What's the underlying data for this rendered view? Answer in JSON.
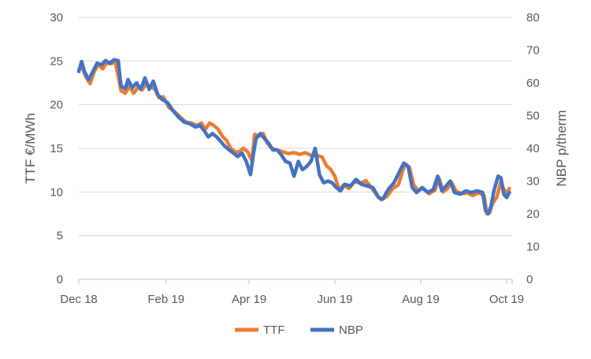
{
  "chart_data": {
    "type": "line",
    "y_left": {
      "label": "TTF €/MWh",
      "min": 0,
      "max": 30,
      "ticks": [
        0,
        5,
        10,
        15,
        20,
        25,
        30
      ]
    },
    "y_right": {
      "label": "NBP p/therm",
      "min": 0,
      "max": 80,
      "ticks": [
        0,
        10,
        20,
        30,
        40,
        50,
        60,
        70,
        80
      ]
    },
    "x_axis": {
      "start": "2018-12-01",
      "end": "2019-10-05",
      "ticks": [
        {
          "date": "2018-12-01",
          "label": "Dec 18"
        },
        {
          "date": "2019-02-01",
          "label": "Feb 19"
        },
        {
          "date": "2019-04-01",
          "label": "Apr 19"
        },
        {
          "date": "2019-06-01",
          "label": "Jun 19"
        },
        {
          "date": "2019-08-01",
          "label": "Aug 19"
        },
        {
          "date": "2019-10-01",
          "label": "Oct 19"
        }
      ]
    },
    "grid": true,
    "legend": {
      "position": "bottom"
    },
    "series": [
      {
        "name": "TTF",
        "axis": "left",
        "color": "#ED7D31",
        "points": [
          [
            "2018-12-01",
            24.0
          ],
          [
            "2018-12-03",
            24.4
          ],
          [
            "2018-12-06",
            23.2
          ],
          [
            "2018-12-09",
            22.4
          ],
          [
            "2018-12-12",
            23.8
          ],
          [
            "2018-12-15",
            24.6
          ],
          [
            "2018-12-18",
            24.1
          ],
          [
            "2018-12-21",
            24.8
          ],
          [
            "2018-12-24",
            24.7
          ],
          [
            "2018-12-27",
            24.9
          ],
          [
            "2018-12-31",
            21.6
          ],
          [
            "2019-01-03",
            21.3
          ],
          [
            "2019-01-06",
            22.1
          ],
          [
            "2019-01-09",
            21.3
          ],
          [
            "2019-01-12",
            22.0
          ],
          [
            "2019-01-15",
            21.7
          ],
          [
            "2019-01-18",
            22.4
          ],
          [
            "2019-01-21",
            22.0
          ],
          [
            "2019-01-24",
            21.8
          ],
          [
            "2019-01-27",
            20.8
          ],
          [
            "2019-01-30",
            20.9
          ],
          [
            "2019-02-03",
            19.7
          ],
          [
            "2019-02-07",
            19.2
          ],
          [
            "2019-02-11",
            18.6
          ],
          [
            "2019-02-15",
            18.0
          ],
          [
            "2019-02-19",
            17.9
          ],
          [
            "2019-02-23",
            17.6
          ],
          [
            "2019-02-26",
            17.9
          ],
          [
            "2019-03-01",
            17.2
          ],
          [
            "2019-03-04",
            17.9
          ],
          [
            "2019-03-07",
            17.6
          ],
          [
            "2019-03-10",
            17.2
          ],
          [
            "2019-03-13",
            16.4
          ],
          [
            "2019-03-16",
            15.9
          ],
          [
            "2019-03-19",
            15.0
          ],
          [
            "2019-03-22",
            14.6
          ],
          [
            "2019-03-25",
            14.6
          ],
          [
            "2019-03-28",
            15.0
          ],
          [
            "2019-03-31",
            14.6
          ],
          [
            "2019-04-03",
            13.6
          ],
          [
            "2019-04-05",
            16.6
          ],
          [
            "2019-04-08",
            16.4
          ],
          [
            "2019-04-11",
            16.7
          ],
          [
            "2019-04-14",
            15.6
          ],
          [
            "2019-04-17",
            15.0
          ],
          [
            "2019-04-21",
            14.8
          ],
          [
            "2019-04-25",
            14.6
          ],
          [
            "2019-04-29",
            14.4
          ],
          [
            "2019-05-03",
            14.5
          ],
          [
            "2019-05-07",
            14.3
          ],
          [
            "2019-05-11",
            14.5
          ],
          [
            "2019-05-15",
            14.2
          ],
          [
            "2019-05-19",
            14.2
          ],
          [
            "2019-05-23",
            14.0
          ],
          [
            "2019-05-26",
            13.0
          ],
          [
            "2019-05-29",
            12.6
          ],
          [
            "2019-06-01",
            11.8
          ],
          [
            "2019-06-04",
            10.2
          ],
          [
            "2019-06-07",
            10.8
          ],
          [
            "2019-06-11",
            10.4
          ],
          [
            "2019-06-15",
            11.2
          ],
          [
            "2019-06-19",
            11.0
          ],
          [
            "2019-06-23",
            11.3
          ],
          [
            "2019-06-27",
            10.5
          ],
          [
            "2019-07-01",
            9.6
          ],
          [
            "2019-07-04",
            9.1
          ],
          [
            "2019-07-08",
            9.5
          ],
          [
            "2019-07-12",
            10.4
          ],
          [
            "2019-07-16",
            10.8
          ],
          [
            "2019-07-19",
            12.3
          ],
          [
            "2019-07-21",
            13.2
          ],
          [
            "2019-07-24",
            12.8
          ],
          [
            "2019-07-27",
            10.8
          ],
          [
            "2019-07-30",
            10.2
          ],
          [
            "2019-08-03",
            10.4
          ],
          [
            "2019-08-07",
            9.8
          ],
          [
            "2019-08-11",
            10.2
          ],
          [
            "2019-08-14",
            11.6
          ],
          [
            "2019-08-17",
            10.0
          ],
          [
            "2019-08-20",
            10.4
          ],
          [
            "2019-08-23",
            11.1
          ],
          [
            "2019-08-26",
            10.1
          ],
          [
            "2019-08-30",
            9.8
          ],
          [
            "2019-09-03",
            9.9
          ],
          [
            "2019-09-07",
            9.6
          ],
          [
            "2019-09-11",
            9.9
          ],
          [
            "2019-09-15",
            9.6
          ],
          [
            "2019-09-17",
            7.5
          ],
          [
            "2019-09-19",
            7.6
          ],
          [
            "2019-09-21",
            8.7
          ],
          [
            "2019-09-24",
            9.4
          ],
          [
            "2019-09-27",
            11.2
          ],
          [
            "2019-09-29",
            10.3
          ],
          [
            "2019-10-01",
            9.9
          ],
          [
            "2019-10-03",
            10.4
          ]
        ]
      },
      {
        "name": "NBP",
        "axis": "right",
        "color": "#4472C4",
        "points": [
          [
            "2018-12-01",
            63.5
          ],
          [
            "2018-12-03",
            66.5
          ],
          [
            "2018-12-05",
            63.5
          ],
          [
            "2018-12-08",
            61.0
          ],
          [
            "2018-12-11",
            63.5
          ],
          [
            "2018-12-14",
            66.0
          ],
          [
            "2018-12-17",
            65.5
          ],
          [
            "2018-12-20",
            66.8
          ],
          [
            "2018-12-23",
            66.0
          ],
          [
            "2018-12-26",
            67.0
          ],
          [
            "2018-12-29",
            66.8
          ],
          [
            "2018-12-31",
            59.0
          ],
          [
            "2019-01-03",
            58.2
          ],
          [
            "2019-01-05",
            61.0
          ],
          [
            "2019-01-08",
            58.5
          ],
          [
            "2019-01-11",
            60.0
          ],
          [
            "2019-01-14",
            58.0
          ],
          [
            "2019-01-17",
            61.5
          ],
          [
            "2019-01-20",
            58.0
          ],
          [
            "2019-01-23",
            60.5
          ],
          [
            "2019-01-26",
            56.5
          ],
          [
            "2019-01-29",
            55.0
          ],
          [
            "2019-02-02",
            54.0
          ],
          [
            "2019-02-06",
            51.5
          ],
          [
            "2019-02-10",
            49.5
          ],
          [
            "2019-02-14",
            48.0
          ],
          [
            "2019-02-18",
            47.5
          ],
          [
            "2019-02-22",
            46.5
          ],
          [
            "2019-02-25",
            47.0
          ],
          [
            "2019-02-28",
            45.5
          ],
          [
            "2019-03-03",
            43.5
          ],
          [
            "2019-03-06",
            44.5
          ],
          [
            "2019-03-09",
            43.5
          ],
          [
            "2019-03-12",
            42.0
          ],
          [
            "2019-03-15",
            40.5
          ],
          [
            "2019-03-18",
            39.5
          ],
          [
            "2019-03-21",
            38.5
          ],
          [
            "2019-03-24",
            37.5
          ],
          [
            "2019-03-27",
            38.5
          ],
          [
            "2019-03-30",
            36.0
          ],
          [
            "2019-04-02",
            32.0
          ],
          [
            "2019-04-04",
            38.0
          ],
          [
            "2019-04-06",
            43.0
          ],
          [
            "2019-04-09",
            44.5
          ],
          [
            "2019-04-12",
            43.0
          ],
          [
            "2019-04-15",
            41.5
          ],
          [
            "2019-04-18",
            39.5
          ],
          [
            "2019-04-21",
            39.5
          ],
          [
            "2019-04-24",
            38.0
          ],
          [
            "2019-04-27",
            36.0
          ],
          [
            "2019-04-30",
            35.5
          ],
          [
            "2019-05-03",
            31.5
          ],
          [
            "2019-05-06",
            36.0
          ],
          [
            "2019-05-09",
            33.5
          ],
          [
            "2019-05-12",
            34.5
          ],
          [
            "2019-05-15",
            36.0
          ],
          [
            "2019-05-18",
            40.0
          ],
          [
            "2019-05-21",
            32.0
          ],
          [
            "2019-05-24",
            29.5
          ],
          [
            "2019-05-27",
            30.0
          ],
          [
            "2019-05-30",
            29.5
          ],
          [
            "2019-06-02",
            28.0
          ],
          [
            "2019-06-05",
            27.0
          ],
          [
            "2019-06-08",
            29.0
          ],
          [
            "2019-06-12",
            28.5
          ],
          [
            "2019-06-16",
            30.5
          ],
          [
            "2019-06-20",
            29.0
          ],
          [
            "2019-06-24",
            28.5
          ],
          [
            "2019-06-28",
            28.0
          ],
          [
            "2019-07-02",
            25.0
          ],
          [
            "2019-07-05",
            24.5
          ],
          [
            "2019-07-09",
            27.5
          ],
          [
            "2019-07-13",
            29.5
          ],
          [
            "2019-07-17",
            33.0
          ],
          [
            "2019-07-20",
            35.5
          ],
          [
            "2019-07-23",
            34.5
          ],
          [
            "2019-07-26",
            28.0
          ],
          [
            "2019-07-29",
            26.5
          ],
          [
            "2019-08-02",
            28.0
          ],
          [
            "2019-08-06",
            26.5
          ],
          [
            "2019-08-10",
            27.5
          ],
          [
            "2019-08-13",
            31.5
          ],
          [
            "2019-08-16",
            27.0
          ],
          [
            "2019-08-19",
            28.5
          ],
          [
            "2019-08-22",
            30.0
          ],
          [
            "2019-08-25",
            26.5
          ],
          [
            "2019-08-29",
            26.0
          ],
          [
            "2019-09-02",
            27.0
          ],
          [
            "2019-09-06",
            26.5
          ],
          [
            "2019-09-10",
            27.0
          ],
          [
            "2019-09-14",
            26.5
          ],
          [
            "2019-09-16",
            21.0
          ],
          [
            "2019-09-18",
            20.0
          ],
          [
            "2019-09-20",
            22.5
          ],
          [
            "2019-09-22",
            27.0
          ],
          [
            "2019-09-25",
            31.5
          ],
          [
            "2019-09-27",
            31.0
          ],
          [
            "2019-09-29",
            26.0
          ],
          [
            "2019-10-01",
            25.0
          ],
          [
            "2019-10-03",
            26.5
          ]
        ]
      }
    ]
  }
}
